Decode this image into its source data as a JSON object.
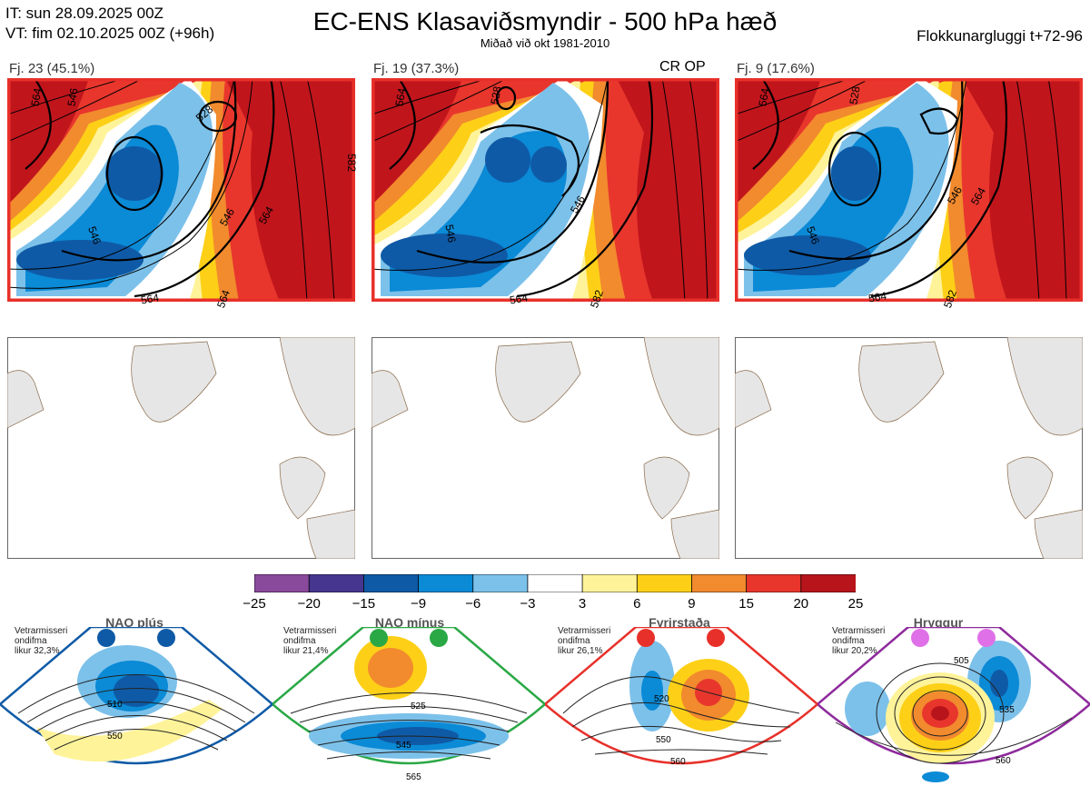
{
  "header": {
    "it_line": "IT: sun 28.09.2025 00Z",
    "vt_line": "VT: fim 02.10.2025 00Z  (+96h)",
    "title": "EC-ENS Klasaviðsmyndir - 500 hPa hæð",
    "subtitle": "Miðað við okt 1981-2010",
    "window": "Flokkunargluggi t+72-96"
  },
  "clusters": [
    {
      "label": "Fj. 23 (45.1%)",
      "op": "",
      "contours": [
        "564",
        "546",
        "528",
        "546",
        "546",
        "564",
        "564",
        "564",
        "582"
      ]
    },
    {
      "label": "Fj. 19 (37.3%)",
      "op": "CR OP",
      "contours": [
        "564",
        "528",
        "546",
        "546",
        "564",
        "582"
      ]
    },
    {
      "label": "Fj. 9 (17.6%)",
      "op": "",
      "contours": [
        "564",
        "528",
        "546",
        "564",
        "546",
        "564",
        "582"
      ]
    }
  ],
  "colorbar": {
    "ticks": [
      "−25",
      "−20",
      "−15",
      "−9",
      "−6",
      "−3",
      "3",
      "6",
      "9",
      "15",
      "20",
      "25"
    ],
    "colors": [
      "#8a4a9c",
      "#46368f",
      "#0f5aa6",
      "#0b8ad6",
      "#7cc1ea",
      "#ffffff",
      "#fff39a",
      "#fdd017",
      "#f28a2e",
      "#e8362d",
      "#b8141b"
    ]
  },
  "climate_regimes": [
    {
      "name": "NAO plús",
      "note": [
        "Vetrarmisseri",
        "ondifma",
        "likur 32,3%"
      ],
      "color": "#0f5aa6",
      "contours": [
        "510",
        "550"
      ]
    },
    {
      "name": "NAO mínus",
      "note": [
        "Vetrarmisseri",
        "ondifma",
        "likur 21,4%"
      ],
      "color": "#2aa845",
      "contours": [
        "525",
        "545",
        "565"
      ]
    },
    {
      "name": "Fyrirstaða",
      "note": [
        "Vetrarmisseri",
        "ondifma",
        "likur 26,1%"
      ],
      "color": "#e8302a",
      "contours": [
        "520",
        "550",
        "560"
      ]
    },
    {
      "name": "Hryggur",
      "note": [
        "Vetrarmisseri",
        "ondifma",
        "likur 20,2%"
      ],
      "color": "#e070e8",
      "contours": [
        "505",
        "535",
        "560"
      ]
    }
  ]
}
